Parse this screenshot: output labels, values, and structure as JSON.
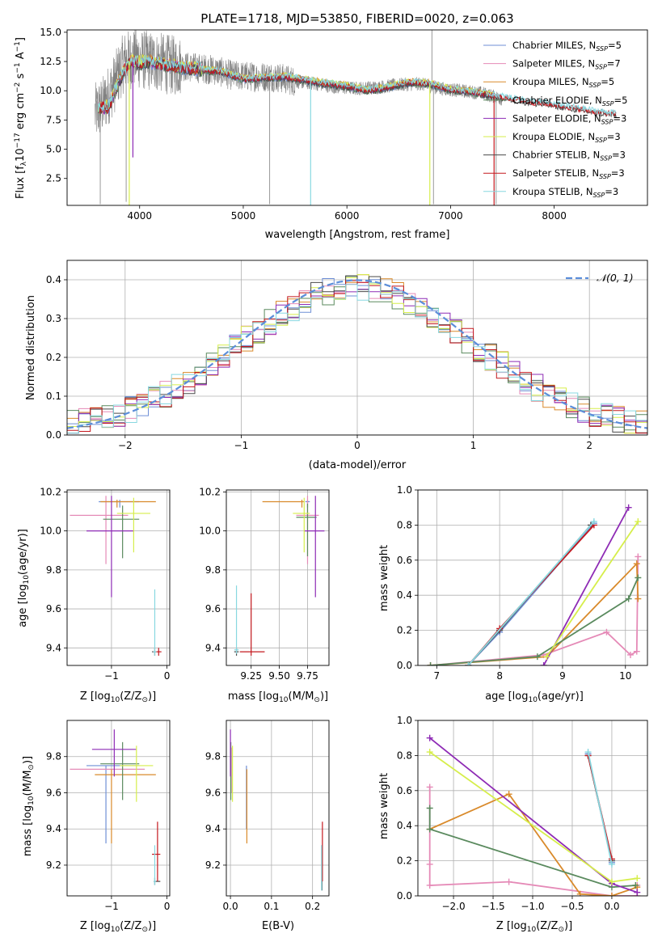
{
  "colors": {
    "Chabrier MILES": "#6f8fd6",
    "Salpeter MILES": "#e58ab7",
    "Kroupa MILES": "#d98a2b",
    "Chabrier ELODIE": "#5a8a5e",
    "Salpeter ELODIE": "#8e2bb5",
    "Kroupa ELODIE": "#d6ee4b",
    "Chabrier STELIB": "#4a4a4a",
    "Salpeter STELIB": "#c4181e",
    "Kroupa STELIB": "#88d8e0",
    "data": "#808080",
    "normal": "#5b8dd9"
  },
  "chart_data": [
    {
      "id": "spectrum",
      "type": "line",
      "title": "PLATE=1718, MJD=53850, FIBERID=0020, z=0.063",
      "xlabel": "wavelength [Angstrom, rest frame]",
      "ylabel": "Flux [f_λ10^-17 erg cm^-2 s^-1 A^-1]",
      "xlim": [
        3300,
        8900
      ],
      "ylim": [
        0.2,
        15.2
      ],
      "xticks": [
        4000,
        5000,
        6000,
        7000,
        8000
      ],
      "yticks": [
        2.5,
        5.0,
        7.5,
        10.0,
        12.5,
        15.0
      ],
      "legend_position": "top-right",
      "legend": [
        {
          "series": "Chabrier MILES",
          "label": "Chabrier MILES, N",
          "sub": "SSP",
          "tail": "=5"
        },
        {
          "series": "Salpeter MILES",
          "label": "Salpeter MILES, N",
          "sub": "SSP",
          "tail": "=7"
        },
        {
          "series": "Kroupa MILES",
          "label": "Kroupa MILES, N",
          "sub": "SSP",
          "tail": "=5"
        },
        {
          "series": "Chabrier ELODIE",
          "label": "Chabrier ELODIE, N",
          "sub": "SSP",
          "tail": "=5"
        },
        {
          "series": "Salpeter ELODIE",
          "label": "Salpeter ELODIE, N",
          "sub": "SSP",
          "tail": "=3"
        },
        {
          "series": "Kroupa ELODIE",
          "label": "Kroupa ELODIE, N",
          "sub": "SSP",
          "tail": "=3"
        },
        {
          "series": "Chabrier STELIB",
          "label": "Chabrier STELIB, N",
          "sub": "SSP",
          "tail": "=3"
        },
        {
          "series": "Salpeter STELIB",
          "label": "Salpeter STELIB, N",
          "sub": "SSP",
          "tail": "=3"
        },
        {
          "series": "Kroupa STELIB",
          "label": "Kroupa STELIB, N",
          "sub": "SSP",
          "tail": "=3"
        }
      ],
      "data_continuum": {
        "x": [
          3560,
          3650,
          3750,
          3850,
          3950,
          4050,
          4150,
          4300,
          4500,
          4700,
          4900,
          5100,
          5300,
          5500,
          5700,
          5900,
          6100,
          6300,
          6500,
          6700,
          6900,
          7100,
          7300,
          7500
        ],
        "y": [
          8.0,
          8.8,
          10.5,
          12.5,
          12.8,
          12.6,
          12.5,
          12.2,
          12.0,
          11.8,
          11.3,
          11.2,
          11.2,
          10.8,
          10.6,
          10.3,
          10.2,
          10.3,
          10.5,
          10.6,
          10.2,
          10.0,
          9.8,
          9.3
        ]
      },
      "model_continuum": {
        "x": [
          3600,
          3700,
          3800,
          3900,
          4000,
          4100,
          4200,
          4400,
          4600,
          4800,
          5000,
          5200,
          5400,
          5600,
          5800,
          6000,
          6200,
          6400,
          6600,
          6800,
          7000,
          7200,
          7400,
          7600,
          7800,
          8000,
          8200,
          8400,
          8600
        ],
        "y": [
          8.5,
          8.6,
          10.8,
          12.5,
          12.4,
          12.5,
          12.3,
          12.0,
          11.8,
          11.6,
          11.0,
          11.1,
          11.2,
          10.9,
          10.6,
          10.4,
          10.0,
          10.3,
          10.7,
          10.6,
          10.1,
          9.9,
          9.6,
          9.3,
          9.0,
          8.8,
          8.5,
          8.2,
          8.0
        ]
      }
    },
    {
      "id": "residuals",
      "type": "histogram",
      "xlabel": "(data-model)/error",
      "ylabel": "Normed distribution",
      "xlim": [
        -2.5,
        2.5
      ],
      "ylim": [
        0.0,
        0.45
      ],
      "xticks": [
        -2,
        -1,
        0,
        1,
        2
      ],
      "yticks": [
        0.0,
        0.1,
        0.2,
        0.3,
        0.4
      ],
      "legend_label": "𝒩(0, 1)",
      "normal_curve": {
        "mean": 0,
        "std": 1
      },
      "bin_width": 0.1
    },
    {
      "id": "age_vs_Z",
      "type": "errorbar",
      "xlabel": "Z [log10(Z/Z⊙)]",
      "ylabel": "age [log10(age/yr)]",
      "xlim": [
        -1.8,
        0.05
      ],
      "ylim": [
        9.31,
        10.21
      ],
      "xticks": [
        -1,
        0
      ],
      "yticks": [
        9.4,
        9.6,
        9.8,
        10.0,
        10.2
      ],
      "points": [
        {
          "series": "Chabrier MILES",
          "x": -0.85,
          "xerr": [
            0.38,
            0.35
          ],
          "y": 10.15,
          "yerr": [
            0.03,
            0.01
          ]
        },
        {
          "series": "Salpeter MILES",
          "x": -1.1,
          "xerr": [
            0.65,
            0.4
          ],
          "y": 10.08,
          "yerr": [
            0.25,
            0.1
          ]
        },
        {
          "series": "Kroupa MILES",
          "x": -0.9,
          "xerr": [
            0.3,
            0.7
          ],
          "y": 10.15,
          "yerr": [
            0.03,
            0.01
          ]
        },
        {
          "series": "Chabrier ELODIE",
          "x": -0.8,
          "xerr": [
            0.35,
            0.3
          ],
          "y": 10.06,
          "yerr": [
            0.2,
            0.07
          ]
        },
        {
          "series": "Salpeter ELODIE",
          "x": -1.0,
          "xerr": [
            0.45,
            0.4
          ],
          "y": 10.0,
          "yerr": [
            0.34,
            0.18
          ]
        },
        {
          "series": "Kroupa ELODIE",
          "x": -0.6,
          "xerr": [
            0.3,
            0.3
          ],
          "y": 10.09,
          "yerr": [
            0.2,
            0.08
          ]
        },
        {
          "series": "Chabrier STELIB",
          "x": -0.22,
          "xerr": [
            0.05,
            0.02
          ],
          "y": 9.38,
          "yerr": [
            0.02,
            0.02
          ]
        },
        {
          "series": "Salpeter STELIB",
          "x": -0.15,
          "xerr": [
            0.1,
            0.05
          ],
          "y": 9.38,
          "yerr": [
            0.02,
            0.02
          ]
        },
        {
          "series": "Kroupa STELIB",
          "x": -0.22,
          "xerr": [
            0.03,
            0.03
          ],
          "y": 9.38,
          "yerr": [
            0.02,
            0.32
          ]
        }
      ]
    },
    {
      "id": "age_vs_mass",
      "type": "errorbar",
      "xlabel": "mass [log10(M/M⊙)]",
      "ylabel": "",
      "xlim": [
        9.03,
        9.94
      ],
      "ylim": [
        9.31,
        10.21
      ],
      "xticks": [
        9.25,
        9.5,
        9.75
      ],
      "yticks": [
        9.4,
        9.6,
        9.8,
        10.0,
        10.2
      ],
      "points": [
        {
          "series": "Chabrier MILES",
          "x": 9.75,
          "xerr": [
            0.02,
            0.02
          ],
          "y": 10.15,
          "yerr": [
            0.03,
            0.01
          ]
        },
        {
          "series": "Salpeter MILES",
          "x": 9.75,
          "xerr": [
            0.1,
            0.1
          ],
          "y": 10.08,
          "yerr": [
            0.25,
            0.1
          ]
        },
        {
          "series": "Kroupa MILES",
          "x": 9.7,
          "xerr": [
            0.35,
            0.02
          ],
          "y": 10.15,
          "yerr": [
            0.03,
            0.01
          ]
        },
        {
          "series": "Chabrier ELODIE",
          "x": 9.75,
          "xerr": [
            0.1,
            0.08
          ],
          "y": 10.07,
          "yerr": [
            0.2,
            0.07
          ]
        },
        {
          "series": "Salpeter ELODIE",
          "x": 9.82,
          "xerr": [
            0.1,
            0.08
          ],
          "y": 10.0,
          "yerr": [
            0.34,
            0.18
          ]
        },
        {
          "series": "Kroupa ELODIE",
          "x": 9.72,
          "xerr": [
            0.1,
            0.05
          ],
          "y": 10.09,
          "yerr": [
            0.2,
            0.08
          ]
        },
        {
          "series": "Chabrier STELIB",
          "x": 9.12,
          "xerr": [
            0.02,
            0.02
          ],
          "y": 9.38,
          "yerr": [
            0.02,
            0.02
          ]
        },
        {
          "series": "Salpeter STELIB",
          "x": 9.25,
          "xerr": [
            0.1,
            0.12
          ],
          "y": 9.38,
          "yerr": [
            0.02,
            0.3
          ]
        },
        {
          "series": "Kroupa STELIB",
          "x": 9.12,
          "xerr": [
            0.02,
            0.02
          ],
          "y": 9.39,
          "yerr": [
            0.02,
            0.33
          ]
        }
      ]
    },
    {
      "id": "mass_weight_vs_age",
      "type": "line",
      "xlabel": "age [log10(age/yr)]",
      "ylabel": "mass weight",
      "xlim": [
        6.7,
        10.35
      ],
      "ylim": [
        0.0,
        1.0
      ],
      "xticks": [
        7,
        8,
        9,
        10
      ],
      "yticks": [
        0.0,
        0.2,
        0.4,
        0.6,
        0.8,
        1.0
      ],
      "series": [
        {
          "name": "Chabrier MILES",
          "x": [
            7.5,
            8.0,
            9.5
          ],
          "y": [
            0.0,
            0.19,
            0.81
          ]
        },
        {
          "name": "Salpeter MILES",
          "x": [
            6.9,
            8.7,
            9.7,
            10.08,
            10.18,
            10.2
          ],
          "y": [
            0.0,
            0.06,
            0.19,
            0.06,
            0.08,
            0.62
          ]
        },
        {
          "name": "Kroupa MILES",
          "x": [
            6.9,
            8.75,
            10.18,
            10.2
          ],
          "y": [
            0.0,
            0.05,
            0.58,
            0.38
          ]
        },
        {
          "name": "Chabrier ELODIE",
          "x": [
            6.9,
            8.6,
            10.05,
            10.2
          ],
          "y": [
            0.0,
            0.05,
            0.38,
            0.5
          ]
        },
        {
          "name": "Salpeter ELODIE",
          "x": [
            8.7,
            10.05
          ],
          "y": [
            0.0,
            0.9
          ]
        },
        {
          "name": "Kroupa ELODIE",
          "x": [
            8.75,
            10.2
          ],
          "y": [
            0.05,
            0.82
          ]
        },
        {
          "name": "Chabrier STELIB",
          "x": [
            7.5,
            8.0,
            9.45
          ],
          "y": [
            0.0,
            0.2,
            0.8
          ]
        },
        {
          "name": "Salpeter STELIB",
          "x": [
            7.5,
            8.0,
            9.5
          ],
          "y": [
            0.0,
            0.21,
            0.8
          ]
        },
        {
          "name": "Kroupa STELIB",
          "x": [
            7.5,
            9.5
          ],
          "y": [
            0.0,
            0.82
          ]
        }
      ]
    },
    {
      "id": "mass_vs_Z",
      "type": "errorbar",
      "xlabel": "Z [log10(Z/Z⊙)]",
      "ylabel": "mass [log10(M/M⊙)]",
      "xlim": [
        -1.8,
        0.05
      ],
      "ylim": [
        9.03,
        10.0
      ],
      "xticks": [
        -1,
        0
      ],
      "yticks": [
        9.2,
        9.4,
        9.6,
        9.8
      ],
      "points": [
        {
          "series": "Chabrier MILES",
          "x": -1.1,
          "xerr": [
            0.35,
            0.6
          ],
          "y": 9.75,
          "yerr": [
            0.43,
            0.0
          ]
        },
        {
          "series": "Salpeter MILES",
          "x": -1.0,
          "xerr": [
            0.75,
            0.6
          ],
          "y": 9.73,
          "yerr": [
            0.0,
            0.0
          ]
        },
        {
          "series": "Kroupa MILES",
          "x": -1.0,
          "xerr": [
            0.3,
            0.8
          ],
          "y": 9.7,
          "yerr": [
            0.38,
            0.03
          ]
        },
        {
          "series": "Chabrier ELODIE",
          "x": -0.8,
          "xerr": [
            0.4,
            0.3
          ],
          "y": 9.76,
          "yerr": [
            0.2,
            0.12
          ]
        },
        {
          "series": "Salpeter ELODIE",
          "x": -0.95,
          "xerr": [
            0.4,
            0.4
          ],
          "y": 9.84,
          "yerr": [
            0.15,
            0.11
          ]
        },
        {
          "series": "Kroupa ELODIE",
          "x": -0.55,
          "xerr": [
            0.3,
            0.3
          ],
          "y": 9.75,
          "yerr": [
            0.2,
            0.11
          ]
        },
        {
          "series": "Chabrier STELIB",
          "x": -0.22,
          "xerr": [
            0.02,
            0.1
          ],
          "y": 9.11,
          "yerr": [
            0.02,
            0.02
          ]
        },
        {
          "series": "Salpeter STELIB",
          "x": -0.17,
          "xerr": [
            0.1,
            0.05
          ],
          "y": 9.26,
          "yerr": [
            0.15,
            0.18
          ]
        },
        {
          "series": "Kroupa STELIB",
          "x": -0.22,
          "xerr": [
            0.02,
            0.02
          ],
          "y": 9.11,
          "yerr": [
            0.02,
            0.2
          ]
        }
      ]
    },
    {
      "id": "mass_vs_ebv",
      "type": "errorbar",
      "xlabel": "E(B-V)",
      "ylabel": "",
      "xlim": [
        -0.01,
        0.24
      ],
      "ylim": [
        9.03,
        10.0
      ],
      "xticks": [
        0.0,
        0.1,
        0.2
      ],
      "yticks": [
        9.2,
        9.4,
        9.6,
        9.8
      ],
      "points": [
        {
          "series": "Chabrier MILES",
          "x": 0.039,
          "xerr": [
            0,
            0
          ],
          "y": 9.7,
          "yerr": [
            0.3,
            0.05
          ]
        },
        {
          "series": "Salpeter MILES",
          "x": 0.002,
          "xerr": [
            0,
            0
          ],
          "y": 9.75,
          "yerr": [
            0.15,
            0.1
          ]
        },
        {
          "series": "Kroupa MILES",
          "x": 0.04,
          "xerr": [
            0,
            0
          ],
          "y": 9.7,
          "yerr": [
            0.38,
            0.03
          ]
        },
        {
          "series": "Chabrier ELODIE",
          "x": 0.001,
          "xerr": [
            0,
            0
          ],
          "y": 9.76,
          "yerr": [
            0.2,
            0.12
          ]
        },
        {
          "series": "Salpeter ELODIE",
          "x": 0.0,
          "xerr": [
            0,
            0
          ],
          "y": 9.84,
          "yerr": [
            0.15,
            0.11
          ]
        },
        {
          "series": "Kroupa ELODIE",
          "x": 0.005,
          "xerr": [
            0,
            0
          ],
          "y": 9.75,
          "yerr": [
            0.2,
            0.11
          ]
        },
        {
          "series": "Chabrier STELIB",
          "x": 0.223,
          "xerr": [
            0,
            0
          ],
          "y": 9.11,
          "yerr": [
            0.05,
            0.2
          ]
        },
        {
          "series": "Salpeter STELIB",
          "x": 0.224,
          "xerr": [
            0,
            0
          ],
          "y": 9.26,
          "yerr": [
            0.15,
            0.18
          ]
        },
        {
          "series": "Kroupa STELIB",
          "x": 0.222,
          "xerr": [
            0,
            0
          ],
          "y": 9.11,
          "yerr": [
            0.05,
            0.2
          ]
        }
      ]
    },
    {
      "id": "mass_weight_vs_Z",
      "type": "line",
      "xlabel": "Z [log10(Z/Z⊙)]",
      "ylabel": "mass weight",
      "xlim": [
        -2.45,
        0.45
      ],
      "ylim": [
        0.0,
        1.0
      ],
      "xticks": [
        -2.0,
        -1.5,
        -1.0,
        -0.5,
        0.0
      ],
      "yticks": [
        0.0,
        0.2,
        0.4,
        0.6,
        0.8,
        1.0
      ],
      "series": [
        {
          "name": "Chabrier MILES",
          "x": [
            -0.3,
            0.0
          ],
          "y": [
            0.81,
            0.19
          ]
        },
        {
          "name": "Salpeter MILES",
          "x": [
            -2.3,
            -2.3,
            -2.3,
            -1.3,
            0.0,
            0.32,
            0.32
          ],
          "y": [
            0.62,
            0.18,
            0.06,
            0.08,
            0.0,
            0.0,
            0.06
          ]
        },
        {
          "name": "Kroupa MILES",
          "x": [
            -2.3,
            -1.3,
            -0.4,
            0.0,
            0.32
          ],
          "y": [
            0.38,
            0.58,
            0.01,
            0.0,
            0.05
          ]
        },
        {
          "name": "Chabrier ELODIE",
          "x": [
            -2.3,
            -2.3,
            0.0,
            0.3
          ],
          "y": [
            0.5,
            0.38,
            0.05,
            0.06
          ]
        },
        {
          "name": "Salpeter ELODIE",
          "x": [
            -2.3,
            0.0,
            0.32
          ],
          "y": [
            0.9,
            0.07,
            0.02
          ]
        },
        {
          "name": "Kroupa ELODIE",
          "x": [
            -2.3,
            0.0,
            0.32
          ],
          "y": [
            0.82,
            0.08,
            0.1
          ]
        },
        {
          "name": "Chabrier STELIB",
          "x": [
            -0.3,
            0.0
          ],
          "y": [
            0.8,
            0.2
          ]
        },
        {
          "name": "Salpeter STELIB",
          "x": [
            -0.3,
            0.0
          ],
          "y": [
            0.8,
            0.21
          ]
        },
        {
          "name": "Kroupa STELIB",
          "x": [
            -0.3,
            0.0
          ],
          "y": [
            0.82,
            0.18
          ]
        }
      ]
    }
  ]
}
